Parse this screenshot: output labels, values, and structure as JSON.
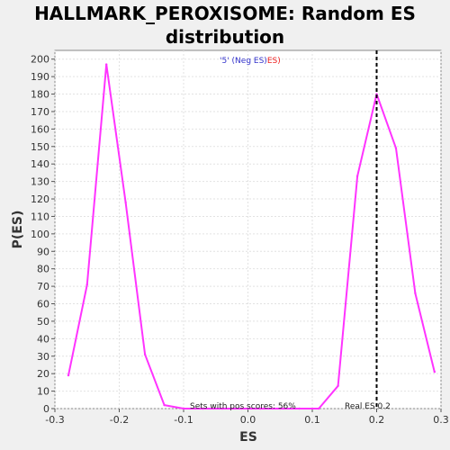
{
  "chart_data": {
    "type": "line",
    "title_lines": [
      "HALLMARK_PEROXISOME: Random ES",
      "distribution"
    ],
    "xlabel": "ES",
    "ylabel": "P(ES)",
    "xlim": [
      -0.3,
      0.3
    ],
    "ylim": [
      0,
      205
    ],
    "x_ticks": [
      -0.3,
      -0.2,
      -0.1,
      0.0,
      0.1,
      0.2,
      0.3
    ],
    "x_tick_labels": [
      "-0.3",
      "-0.2",
      "-0.1",
      "0.0",
      "0.1",
      "0.2",
      "0.3"
    ],
    "y_ticks": [
      0,
      10,
      20,
      30,
      40,
      50,
      60,
      70,
      80,
      90,
      100,
      110,
      120,
      130,
      140,
      150,
      160,
      170,
      180,
      190,
      200
    ],
    "grid": true,
    "line_color": "#ff33ff",
    "series": [
      {
        "values_x": [
          -0.279,
          -0.25,
          -0.22,
          -0.19,
          -0.16,
          -0.13,
          -0.1,
          -0.07,
          -0.04,
          -0.01,
          0.02,
          0.05,
          0.08,
          0.11,
          0.14,
          0.17,
          0.2,
          0.23,
          0.26,
          0.29
        ],
        "values_y": [
          19,
          71,
          197,
          118,
          31,
          2,
          0,
          0,
          0,
          0,
          0,
          0,
          0,
          0,
          13,
          133,
          180,
          149,
          66,
          21
        ]
      }
    ],
    "real_es": 0.2,
    "legend": {
      "part1": "'5' (Neg ES)",
      "part1_color": "#3333cc",
      "part2": "ES)",
      "part2_color": "#ee2222"
    },
    "annotations": {
      "pos_scores": "Sets with pos scores: 56%",
      "real_es_label": "Real ES 0.2"
    }
  }
}
